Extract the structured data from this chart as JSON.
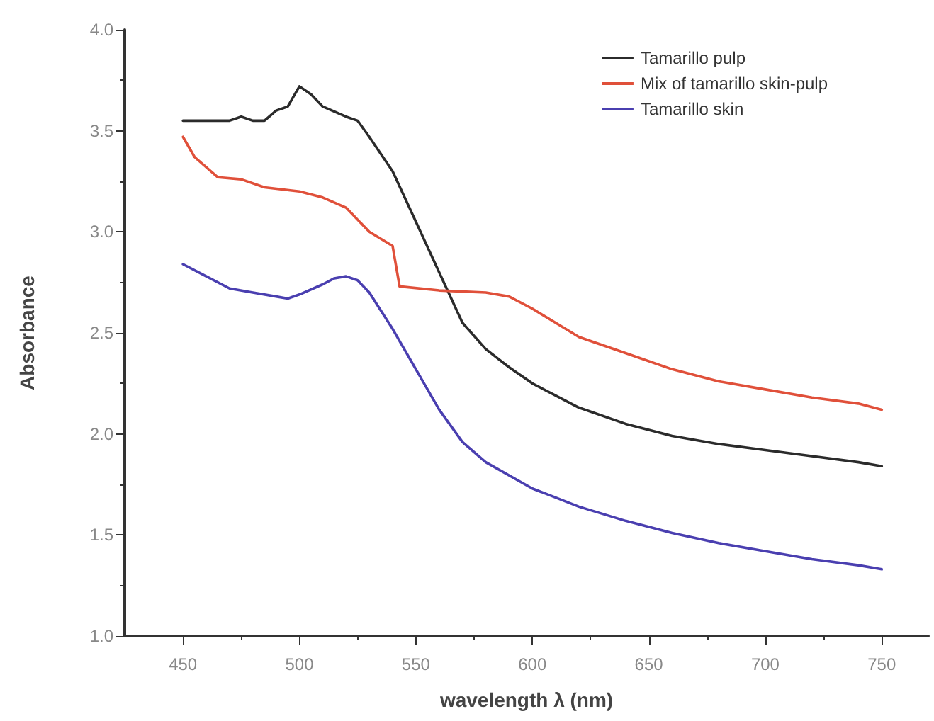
{
  "chart_data": {
    "type": "line",
    "xlabel": "wavelength λ (nm)",
    "ylabel": "Absorbance",
    "xlim": [
      425,
      770
    ],
    "xticks": [
      450,
      500,
      550,
      600,
      650,
      700,
      750
    ],
    "ylim": [
      1.0,
      4.0
    ],
    "yticks": [
      {
        "value": 1,
        "label": "1.0"
      },
      1.5,
      {
        "value": 2,
        "label": "2.0"
      },
      2.5,
      {
        "value": 3,
        "label": "3.0"
      },
      3.5,
      {
        "value": 4,
        "label": "4.0"
      }
    ],
    "grid": false,
    "legend": "top right",
    "marker": "none",
    "line_style": "solid",
    "series": [
      {
        "name": "Tamarillo pulp",
        "color": "#2b2b2b",
        "x": [
          450,
          460,
          470,
          475,
          480,
          485,
          490,
          495,
          500,
          505,
          510,
          520,
          525,
          530,
          540,
          550,
          560,
          570,
          580,
          590,
          600,
          620,
          640,
          660,
          680,
          700,
          720,
          740,
          750
        ],
        "values": [
          3.55,
          3.55,
          3.55,
          3.57,
          3.55,
          3.55,
          3.6,
          3.62,
          3.72,
          3.68,
          3.62,
          3.57,
          3.55,
          3.47,
          3.3,
          3.05,
          2.8,
          2.55,
          2.42,
          2.33,
          2.25,
          2.13,
          2.05,
          1.99,
          1.95,
          1.92,
          1.89,
          1.86,
          1.84
        ]
      },
      {
        "name": "Mix of tamarillo skin-pulp",
        "color": "#e0503a",
        "x": [
          450,
          455,
          465,
          475,
          485,
          500,
          510,
          520,
          530,
          540,
          543,
          560,
          580,
          590,
          600,
          610,
          620,
          640,
          660,
          680,
          700,
          720,
          740,
          750
        ],
        "values": [
          3.47,
          3.37,
          3.27,
          3.26,
          3.22,
          3.2,
          3.17,
          3.12,
          3.0,
          2.93,
          2.73,
          2.71,
          2.7,
          2.68,
          2.62,
          2.55,
          2.48,
          2.4,
          2.32,
          2.26,
          2.22,
          2.18,
          2.15,
          2.12
        ]
      },
      {
        "name": "Tamarillo skin",
        "color": "#4a3fb0",
        "x": [
          450,
          460,
          470,
          480,
          490,
          495,
          500,
          510,
          515,
          520,
          525,
          530,
          540,
          550,
          560,
          570,
          580,
          600,
          620,
          640,
          660,
          680,
          700,
          720,
          740,
          750
        ],
        "values": [
          2.84,
          2.78,
          2.72,
          2.7,
          2.68,
          2.67,
          2.69,
          2.74,
          2.77,
          2.78,
          2.76,
          2.7,
          2.52,
          2.32,
          2.12,
          1.96,
          1.86,
          1.73,
          1.64,
          1.57,
          1.51,
          1.46,
          1.42,
          1.38,
          1.35,
          1.33
        ]
      }
    ]
  }
}
